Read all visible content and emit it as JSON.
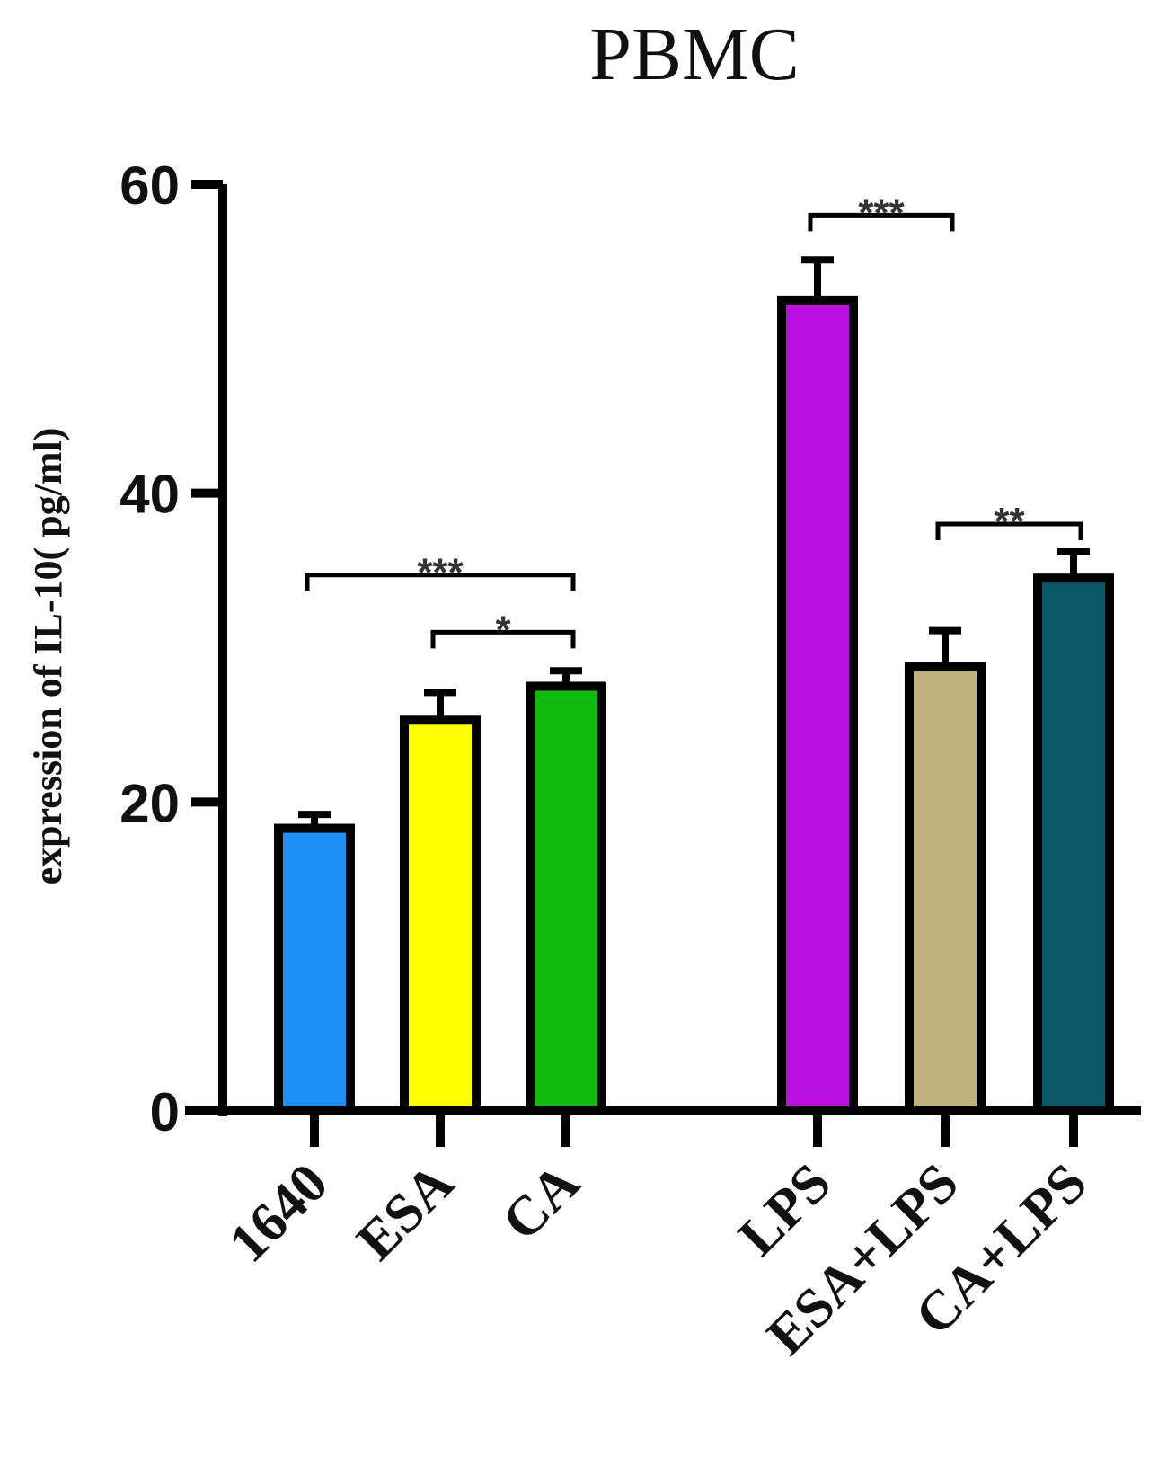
{
  "chart_data": {
    "type": "bar",
    "title": "PBMC",
    "xlabel": "",
    "ylabel": "expression of IL-10( pg/ml)",
    "ylim": [
      0,
      60
    ],
    "yticks": [
      0,
      20,
      40,
      60
    ],
    "grid": false,
    "categories": [
      "1640",
      "ESA",
      "CA",
      "LPS",
      "ESA+LPS",
      "CA+LPS"
    ],
    "values": [
      18.3,
      25.3,
      27.5,
      52.5,
      28.8,
      34.5
    ],
    "errors": [
      0.9,
      1.8,
      1.0,
      2.6,
      2.3,
      1.7
    ],
    "colors": [
      "#1E90F5",
      "#FFFF00",
      "#10BB10",
      "#BB10E0",
      "#BFB07D",
      "#0D5868"
    ],
    "significance": [
      {
        "from": 0,
        "to": 2,
        "label": "***",
        "y": 34.7
      },
      {
        "from": 1,
        "to": 2,
        "label": "*",
        "y": 31.0
      },
      {
        "from": 3,
        "to": 4,
        "label": "***",
        "y": 58.0
      },
      {
        "from": 4,
        "to": 5,
        "label": "**",
        "y": 38.0
      }
    ]
  }
}
